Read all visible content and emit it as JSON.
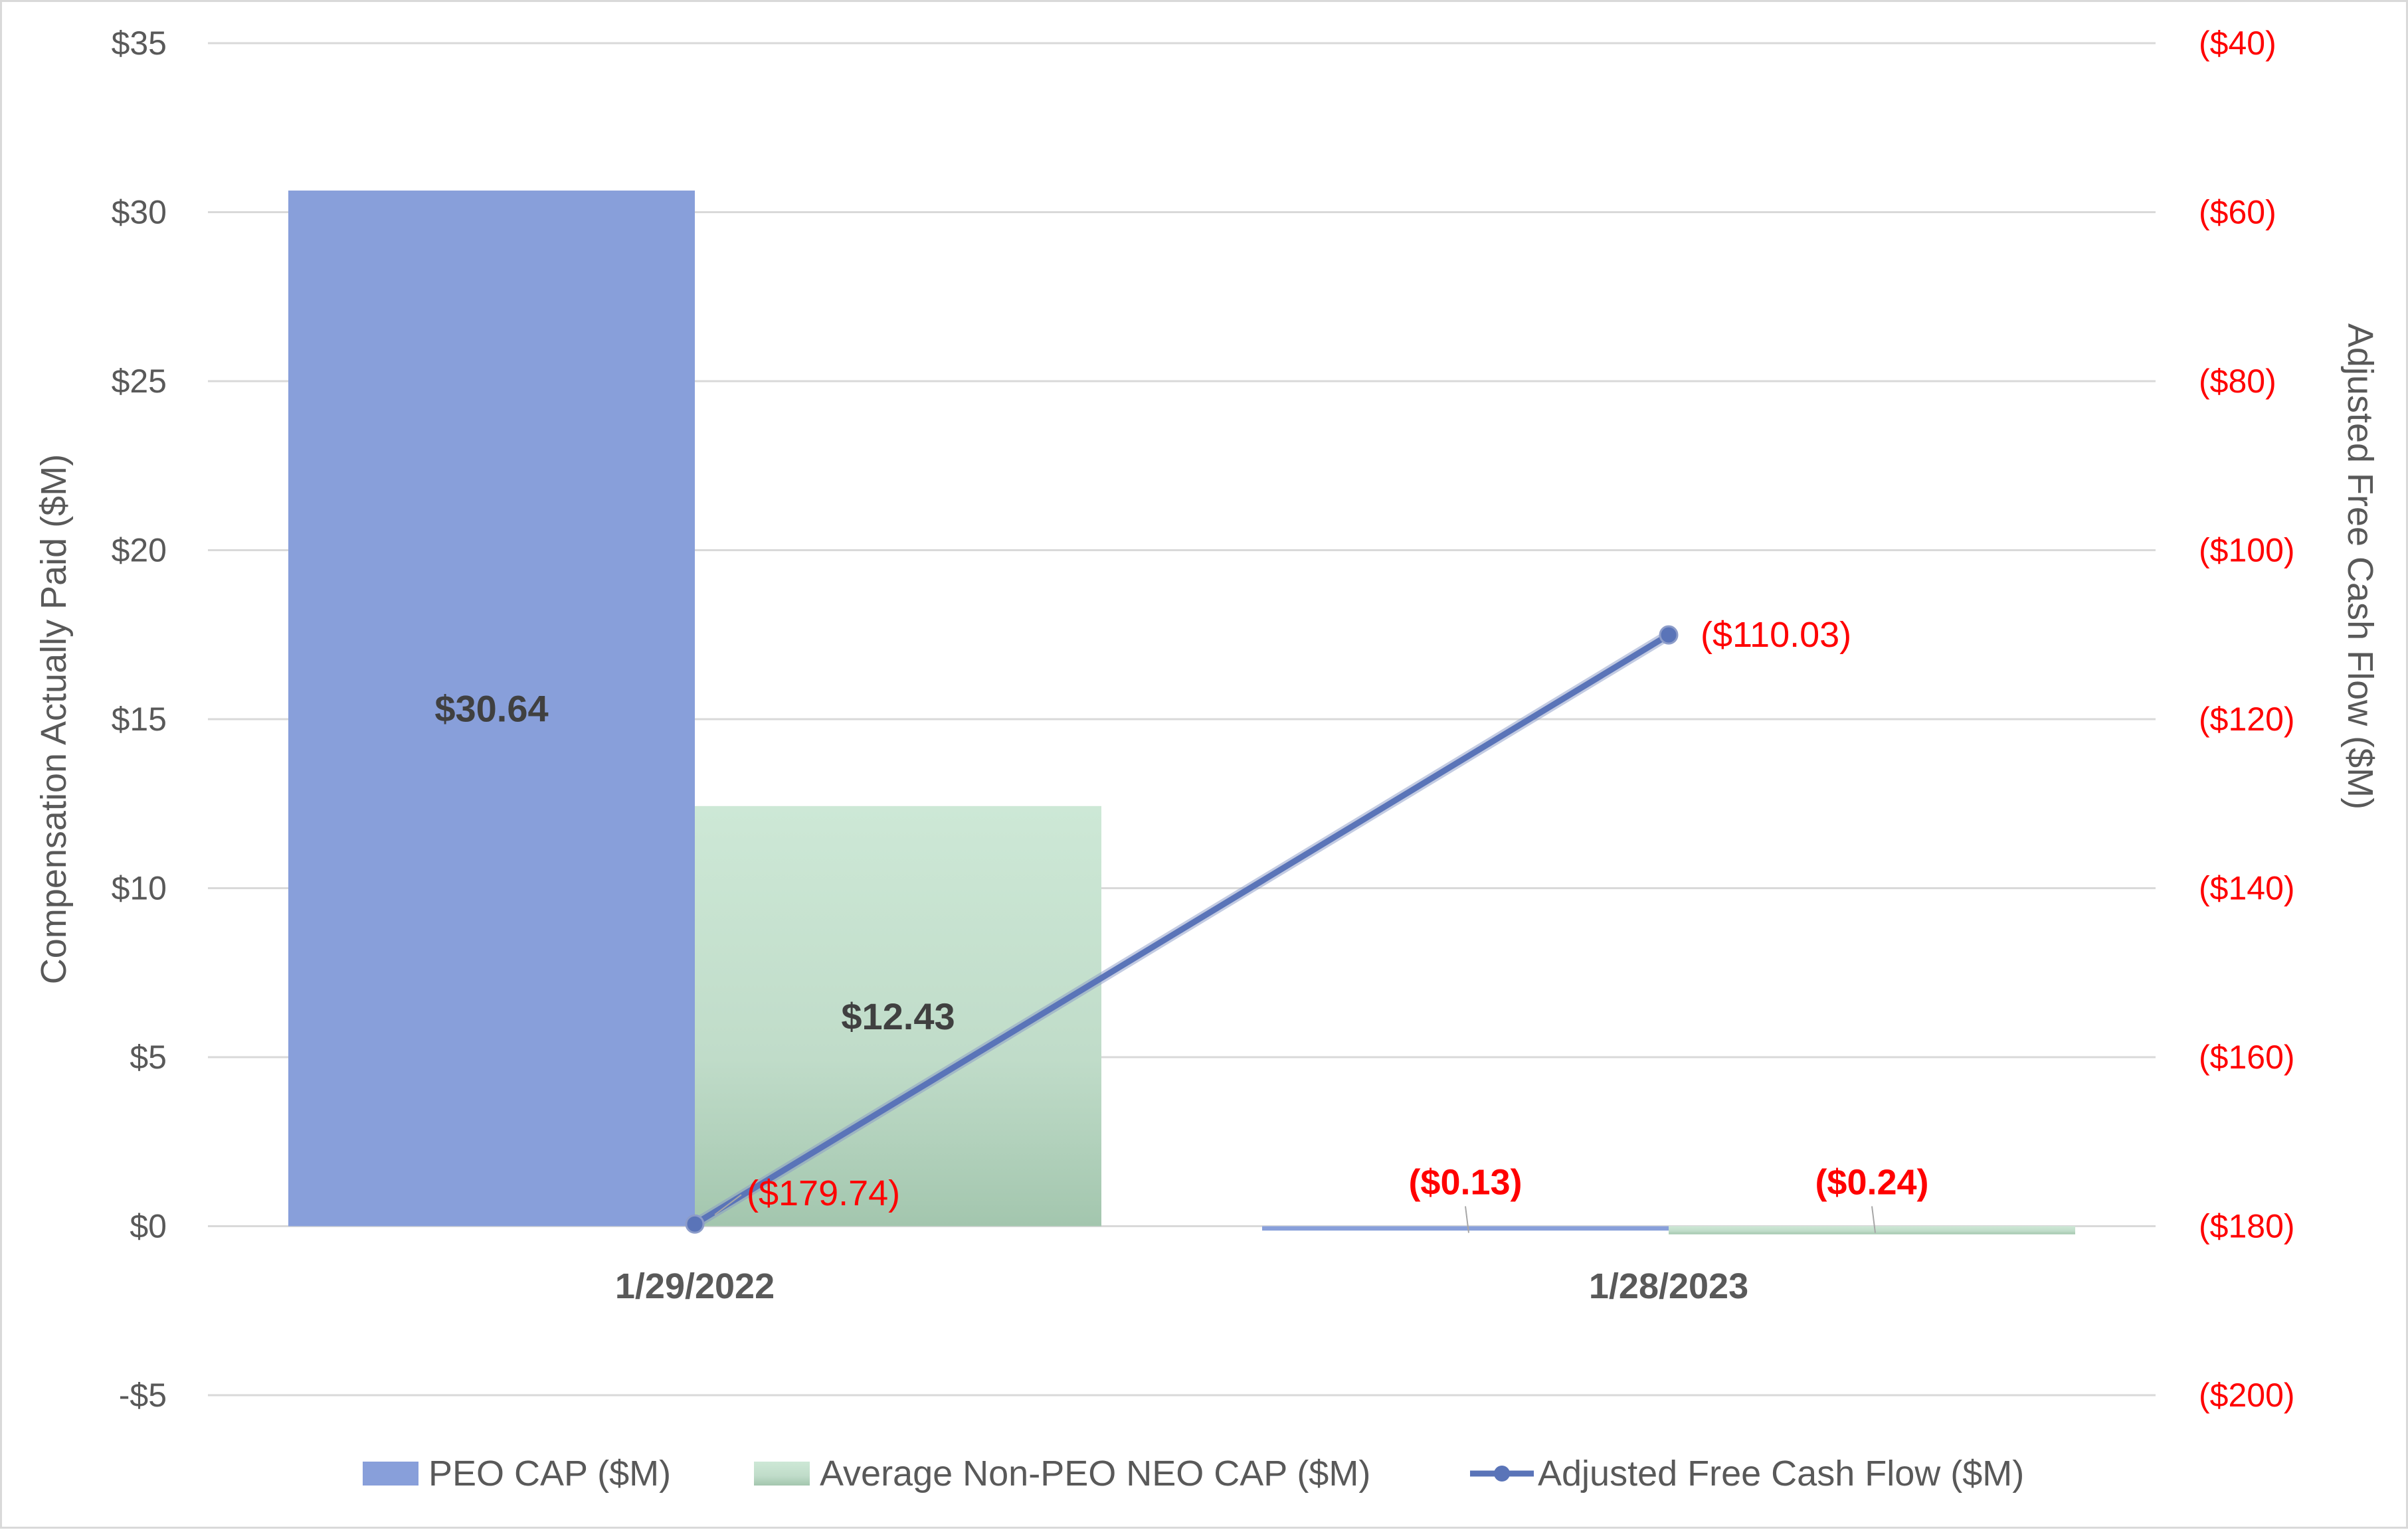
{
  "chart_data": {
    "type": "bar",
    "categories": [
      "1/29/2022",
      "1/28/2023"
    ],
    "series": [
      {
        "name": "PEO CAP ($M)",
        "type": "bar",
        "axis": "left",
        "values": [
          30.64,
          -0.13
        ],
        "labels": [
          "$30.64",
          "($0.13)"
        ],
        "color": "#889fda"
      },
      {
        "name": "Average Non-PEO NEO CAP ($M)",
        "type": "bar",
        "axis": "left",
        "values": [
          12.43,
          -0.24
        ],
        "labels": [
          "$12.43",
          "($0.24)"
        ],
        "color": "#c5e3cf"
      },
      {
        "name": "Adjusted Free Cash Flow ($M)",
        "type": "line",
        "axis": "right",
        "values": [
          -179.74,
          -110.03
        ],
        "labels": [
          "($179.74)",
          "($110.03)"
        ],
        "color": "#5a74b8"
      }
    ],
    "y_left": {
      "label": "Compensation Actually Paid ($M)",
      "range": [
        -5,
        35
      ],
      "ticks": [
        35,
        30,
        25,
        20,
        15,
        10,
        5,
        0,
        -5
      ],
      "tick_labels": [
        "$35",
        "$30",
        "$25",
        "$20",
        "$15",
        "$10",
        "$5",
        "$0",
        "-$5"
      ]
    },
    "y_right": {
      "label": "Adjusted Free Cash Flow ($M)",
      "range": [
        -200,
        -40
      ],
      "ticks": [
        -40,
        -60,
        -80,
        -100,
        -120,
        -140,
        -160,
        -180,
        -200
      ],
      "tick_labels": [
        "($40)",
        "($60)",
        "($80)",
        "($100)",
        "($120)",
        "($140)",
        "($160)",
        "($180)",
        "($200)"
      ],
      "color": "#ff0000"
    },
    "grid": true,
    "legend": "bottom"
  }
}
